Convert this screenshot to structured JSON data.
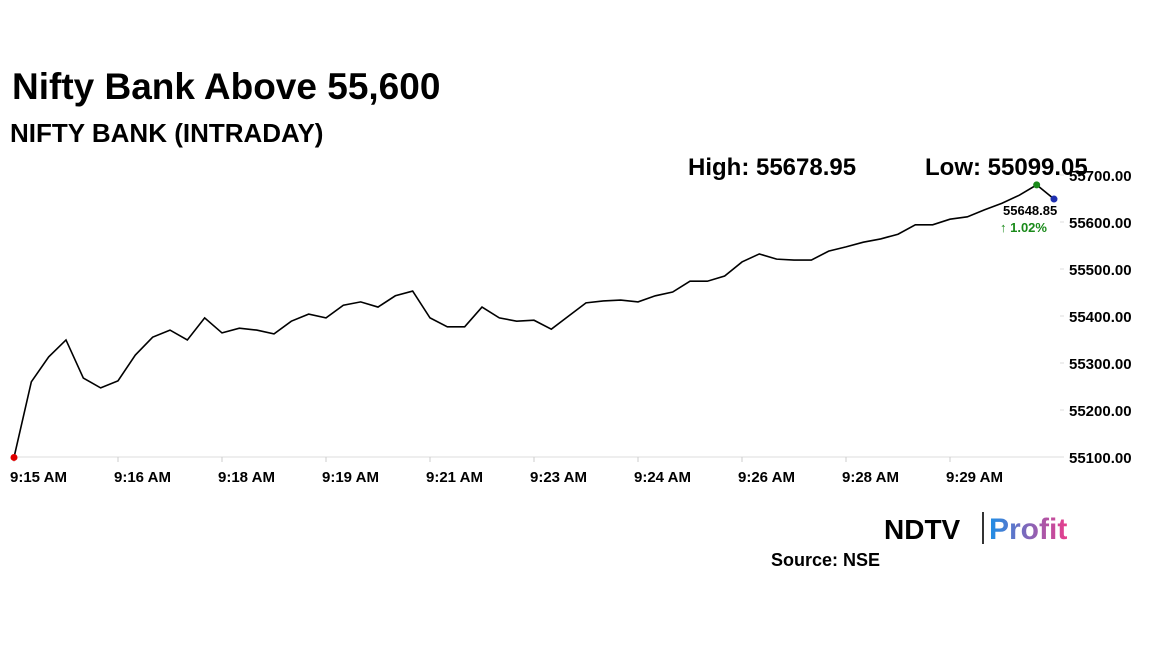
{
  "chart_data": {
    "type": "line",
    "title": "Nifty Bank Above 55,600",
    "subtitle": "NIFTY BANK (INTRADAY)",
    "high_text": "High: 55678.95",
    "low_text": "Low: 55099.05",
    "last_text": "55648.85",
    "change_text": "↑ 1.02%",
    "source": "Source: NSE",
    "logo": [
      "NDTV",
      "Profit"
    ],
    "categories": [
      "9:15 AM",
      null,
      null,
      null,
      null,
      null,
      "9:16 AM",
      null,
      null,
      null,
      null,
      null,
      "9:18 AM",
      null,
      null,
      null,
      null,
      null,
      "9:19 AM",
      null,
      null,
      null,
      null,
      null,
      "9:21 AM",
      null,
      null,
      null,
      null,
      null,
      "9:23 AM",
      null,
      null,
      null,
      null,
      null,
      "9:24 AM",
      null,
      null,
      null,
      null,
      null,
      "9:26 AM",
      null,
      null,
      null,
      null,
      null,
      "9:28 AM",
      null,
      null,
      null,
      null,
      null,
      "9:29 AM",
      null,
      null,
      null,
      null,
      null,
      null
    ],
    "values": [
      55099.05,
      55260,
      55313,
      55349,
      55268,
      55247,
      55262,
      55317,
      55355,
      55370,
      55349,
      55396,
      55364,
      55374,
      55370,
      55362,
      55389,
      55404,
      55396,
      55423,
      55430,
      55419,
      55443,
      55453,
      55396,
      55377,
      55377,
      55419,
      55396,
      55389,
      55391,
      55372,
      55400,
      55428,
      55432,
      55434,
      55430,
      55443,
      55451,
      55474,
      55474,
      55485,
      55515,
      55532,
      55521,
      55519,
      55519,
      55538,
      55547,
      55557,
      55564,
      55574,
      55594,
      55594,
      55606,
      55611,
      55626,
      55640,
      55657,
      55678.95,
      55648.85
    ],
    "color": "#000000",
    "low_color": "#e00000",
    "high_color": "#1a8a1a",
    "last_color": "#1f2fb0",
    "change_color": "#1a8a1a",
    "ylim": [
      55100,
      55700
    ],
    "yticks": [
      {
        "value": 55100,
        "label": "55100.00"
      },
      {
        "value": 55200,
        "label": "55200.00"
      },
      {
        "value": 55300,
        "label": "55300.00"
      },
      {
        "value": 55400,
        "label": "55400.00"
      },
      {
        "value": 55500,
        "label": "55500.00"
      },
      {
        "value": 55600,
        "label": "55600.00"
      },
      {
        "value": 55700,
        "label": "55700.00"
      }
    ]
  }
}
